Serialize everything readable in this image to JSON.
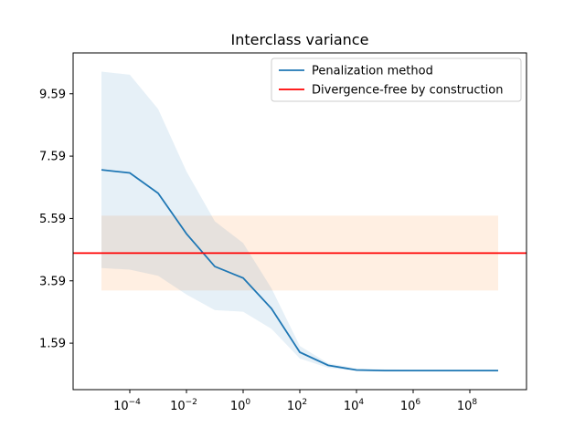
{
  "chart_data": {
    "type": "line",
    "title": "Interclass variance",
    "xlabel": "",
    "ylabel": "",
    "x_scale": "log",
    "x": [
      1e-05,
      0.0001,
      0.001,
      0.01,
      0.1,
      1,
      10,
      100,
      1000,
      10000,
      100000,
      1000000,
      10000000,
      100000000,
      1000000000
    ],
    "xlim": [
      1e-06,
      10000000000
    ],
    "ylim": [
      0.1,
      10.9
    ],
    "x_ticks": [
      {
        "value": 0.0001,
        "base": "10",
        "exp": "−4"
      },
      {
        "value": 0.01,
        "base": "10",
        "exp": "−2"
      },
      {
        "value": 1,
        "base": "10",
        "exp": "0"
      },
      {
        "value": 100,
        "base": "10",
        "exp": "2"
      },
      {
        "value": 10000,
        "base": "10",
        "exp": "4"
      },
      {
        "value": 1000000,
        "base": "10",
        "exp": "6"
      },
      {
        "value": 100000000,
        "base": "10",
        "exp": "8"
      }
    ],
    "y_ticks": [
      {
        "value": 1.59,
        "label": "1.59"
      },
      {
        "value": 3.59,
        "label": "3.59"
      },
      {
        "value": 5.59,
        "label": "5.59"
      },
      {
        "value": 7.59,
        "label": "7.59"
      },
      {
        "value": 9.59,
        "label": "9.59"
      }
    ],
    "grid": false,
    "legend_position": "top-right",
    "series": [
      {
        "name": "Penalization method",
        "color": "#1f77b4",
        "band_color": "#1f77b4",
        "values": [
          7.15,
          7.05,
          6.4,
          5.1,
          4.05,
          3.68,
          2.7,
          1.3,
          0.88,
          0.73,
          0.71,
          0.71,
          0.71,
          0.71,
          0.71
        ],
        "upper": [
          10.3,
          10.2,
          9.1,
          7.1,
          5.5,
          4.8,
          3.35,
          1.5,
          0.95,
          0.78,
          0.75,
          0.74,
          0.74,
          0.74,
          0.74
        ],
        "lower": [
          4.0,
          3.95,
          3.75,
          3.15,
          2.65,
          2.6,
          2.05,
          1.1,
          0.8,
          0.7,
          0.68,
          0.68,
          0.68,
          0.68,
          0.68
        ]
      },
      {
        "name": "Divergence-free by construction",
        "color": "#ff0000",
        "band_color": "#ff7f0e",
        "constant": 4.48,
        "upper": 5.68,
        "lower": 3.28,
        "x_range": [
          1e-05,
          1000000000
        ]
      }
    ]
  }
}
